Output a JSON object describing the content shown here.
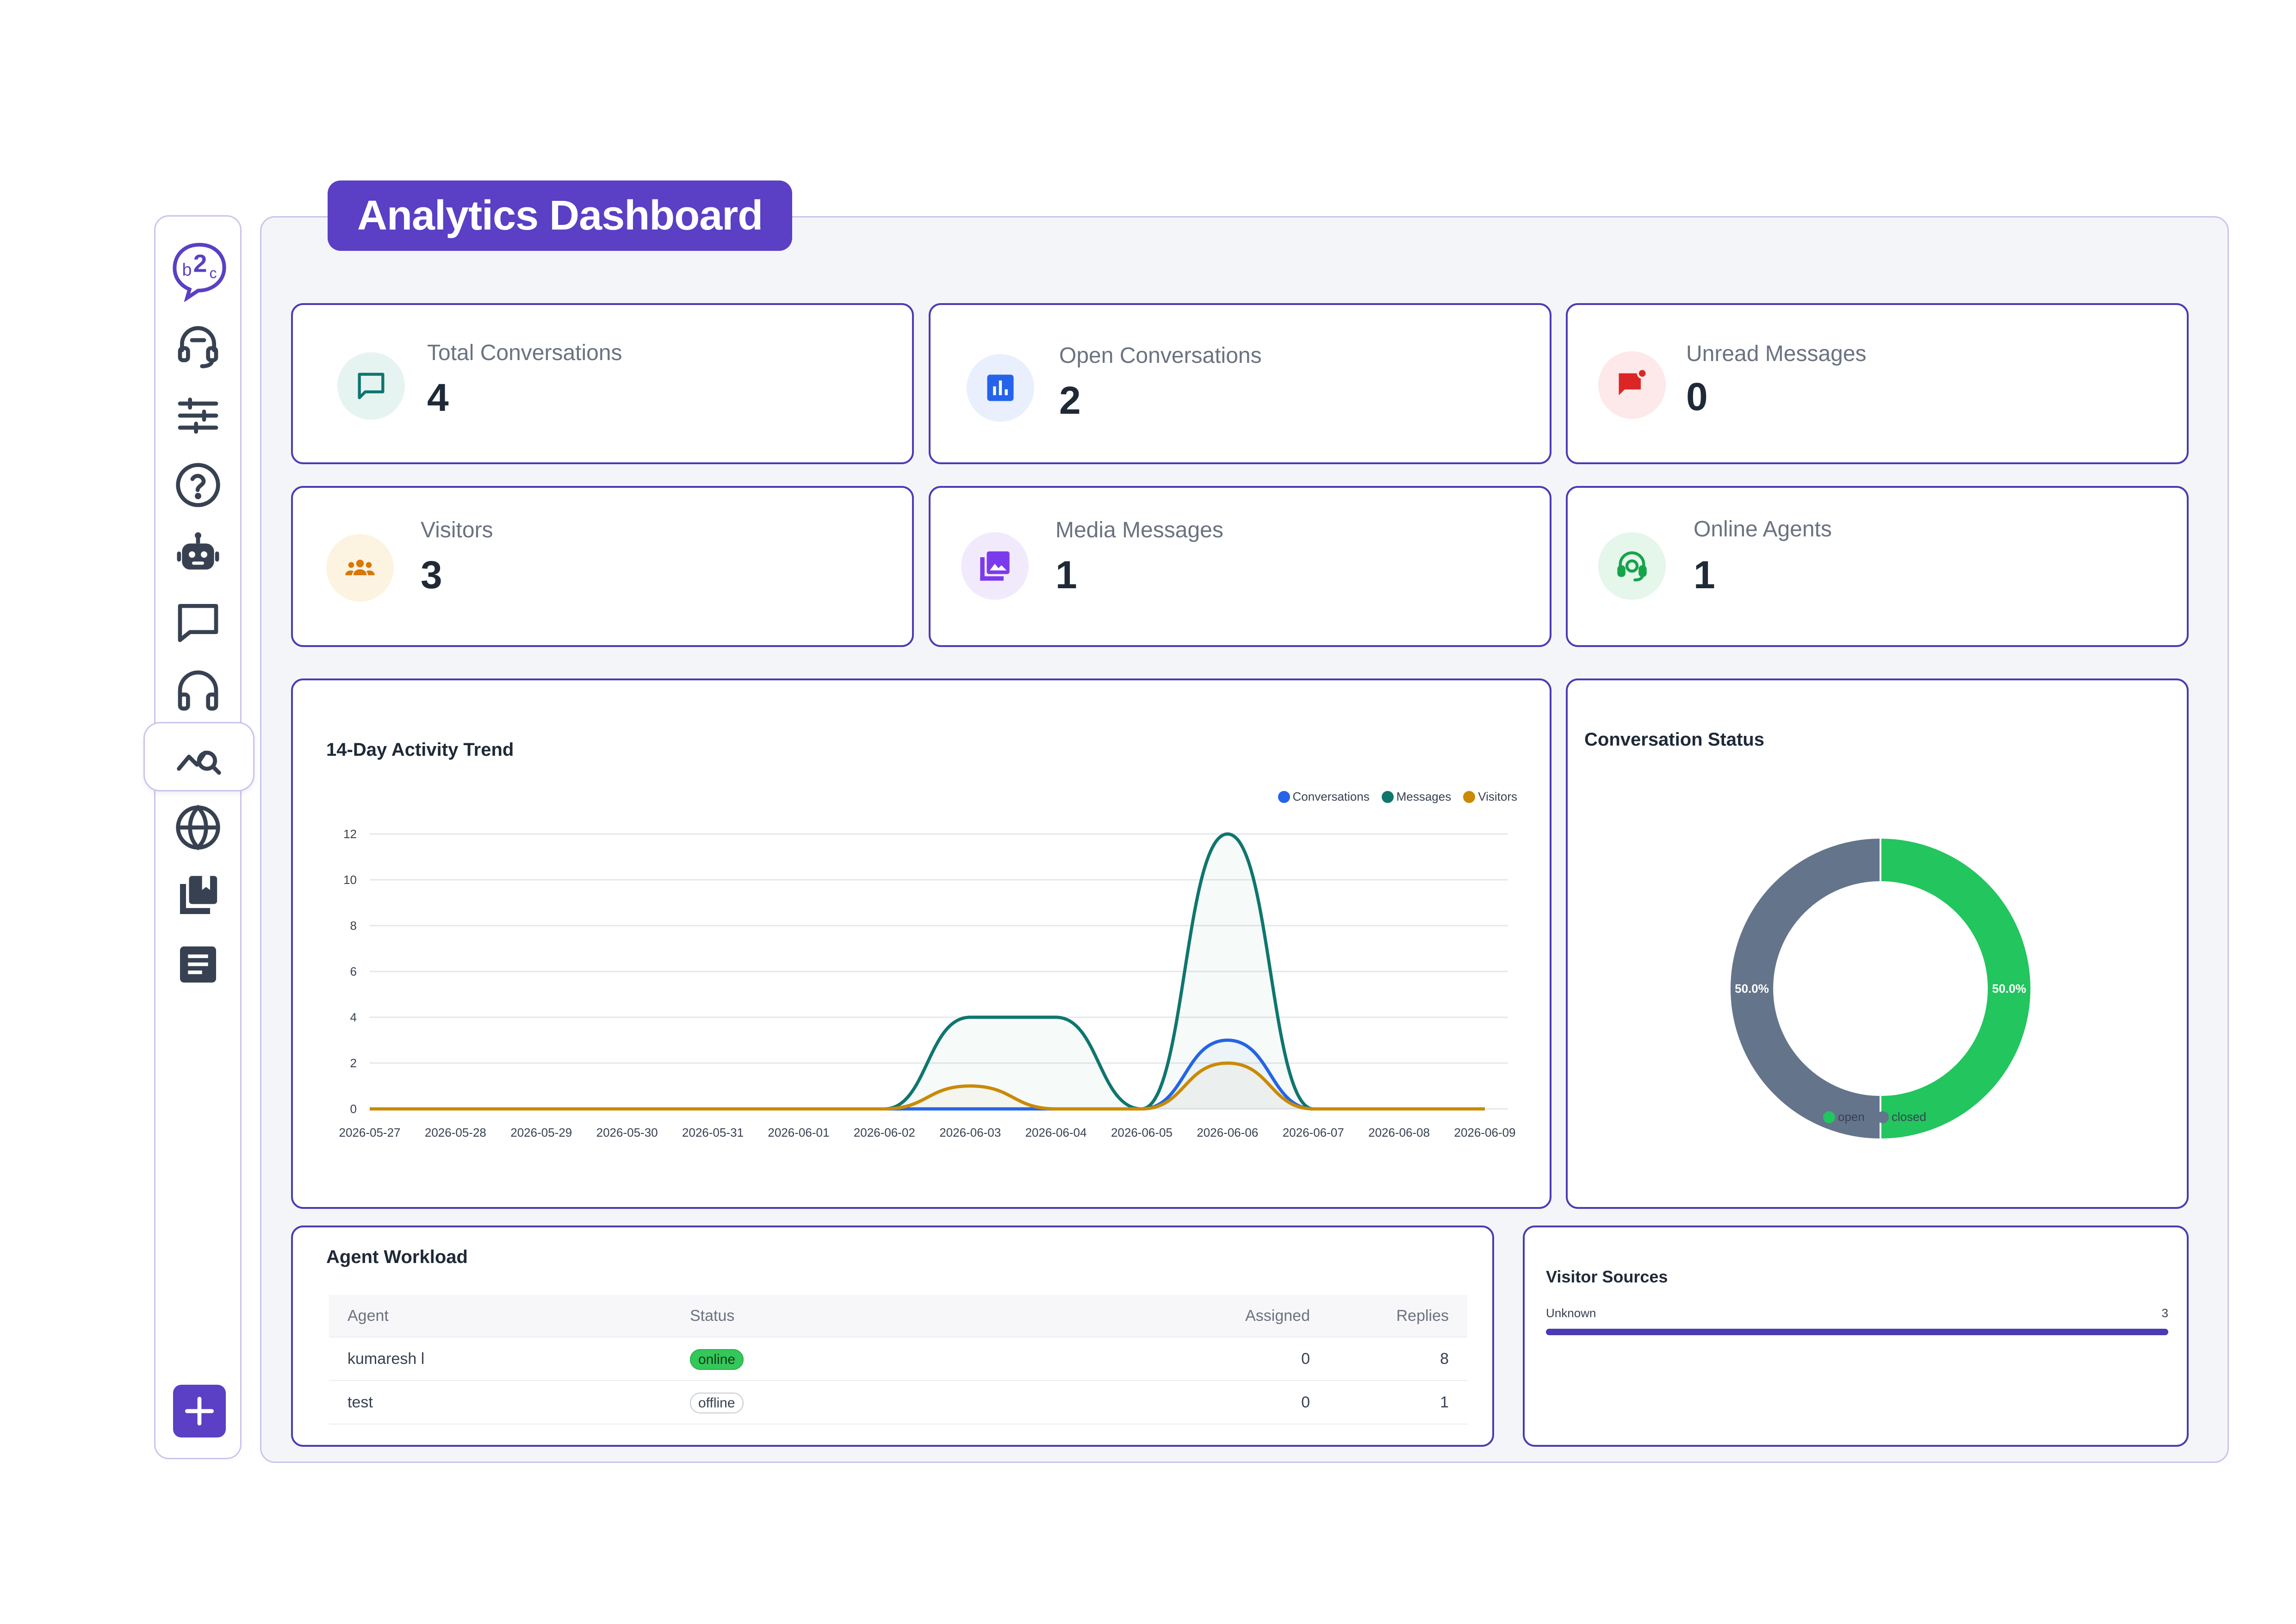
{
  "header": {
    "title": "Analytics Dashboard"
  },
  "sidebar": {
    "items": [
      {
        "icon": "agent-headset-icon"
      },
      {
        "icon": "sliders-icon"
      },
      {
        "icon": "help-circle-icon"
      },
      {
        "icon": "robot-icon"
      },
      {
        "icon": "chat-bubble-icon"
      },
      {
        "icon": "headphones-icon"
      },
      {
        "icon": "analytics-icon",
        "active": true
      },
      {
        "icon": "globe-icon"
      },
      {
        "icon": "library-icon"
      },
      {
        "icon": "document-icon"
      }
    ],
    "add_icon": "plus-icon"
  },
  "stats": {
    "total_conversations": {
      "label": "Total Conversations",
      "value": "4",
      "icon": "chat-icon",
      "color": "#0f766e"
    },
    "open_conversations": {
      "label": "Open Conversations",
      "value": "2",
      "icon": "bar-chart-icon",
      "color": "#2563eb"
    },
    "unread_messages": {
      "label": "Unread Messages",
      "value": "0",
      "icon": "notification-icon",
      "color": "#dc2626"
    },
    "visitors": {
      "label": "Visitors",
      "value": "3",
      "icon": "people-icon",
      "color": "#d97706"
    },
    "media_messages": {
      "label": "Media Messages",
      "value": "1",
      "icon": "photo-library-icon",
      "color": "#7c3aed"
    },
    "online_agents": {
      "label": "Online Agents",
      "value": "1",
      "icon": "support-agent-icon",
      "color": "#16a34a"
    }
  },
  "chart_data": [
    {
      "type": "line",
      "title": "14-Day Activity Trend",
      "x": [
        "2026-05-27",
        "2026-05-28",
        "2026-05-29",
        "2026-05-30",
        "2026-05-31",
        "2026-06-01",
        "2026-06-02",
        "2026-06-03",
        "2026-06-04",
        "2026-06-05",
        "2026-06-06",
        "2026-06-07",
        "2026-06-08",
        "2026-06-09"
      ],
      "series": [
        {
          "name": "Conversations",
          "color": "#2563eb",
          "values": [
            0,
            0,
            0,
            0,
            0,
            0,
            0,
            0,
            0,
            0,
            3,
            0,
            0,
            0
          ]
        },
        {
          "name": "Messages",
          "color": "#0f766e",
          "values": [
            0,
            0,
            0,
            0,
            0,
            0,
            0,
            4,
            4,
            0,
            12,
            0,
            0,
            0
          ]
        },
        {
          "name": "Visitors",
          "color": "#ca8a04",
          "values": [
            0,
            0,
            0,
            0,
            0,
            0,
            0,
            1,
            0,
            0,
            2,
            0,
            0,
            0
          ]
        }
      ],
      "ylim": [
        0,
        12
      ],
      "yticks": [
        "0",
        "2",
        "4",
        "6",
        "8",
        "10",
        "12"
      ],
      "legend": "top-right",
      "grid": true
    },
    {
      "type": "pie",
      "title": "Conversation Status",
      "categories": [
        "open",
        "closed"
      ],
      "values": [
        50.0,
        50.0
      ],
      "labels": [
        "50.0%",
        "50.0%"
      ],
      "colors": [
        "#22c55e",
        "#64748b"
      ],
      "legend": "bottom"
    }
  ],
  "workload": {
    "title": "Agent Workload",
    "columns": [
      "Agent",
      "Status",
      "Assigned",
      "Replies"
    ],
    "rows": [
      {
        "agent": "kumaresh l",
        "status": "online",
        "assigned": "0",
        "replies": "8"
      },
      {
        "agent": "test",
        "status": "offline",
        "assigned": "0",
        "replies": "1"
      }
    ]
  },
  "visitor_sources": {
    "title": "Visitor Sources",
    "items": [
      {
        "label": "Unknown",
        "count": "3",
        "fraction": 1.0
      }
    ],
    "bar_color": "#4a3bb4"
  }
}
